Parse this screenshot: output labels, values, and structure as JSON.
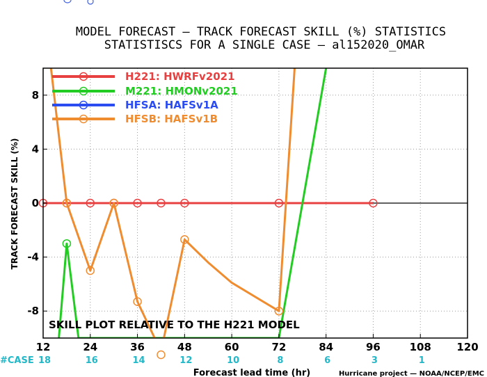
{
  "title_line1": "MODEL FORECAST — TRACK FORECAST SKILL (%) STATISTICS",
  "title_line2": "STATISTISCS FOR A SINGLE CASE — al152020_OMAR",
  "plot_note": "SKILL PLOT RELATIVE TO THE H221 MODEL",
  "case_label": "#CASE",
  "credit": "Hurricane project — NOAA/NCEP/EMC",
  "chart_data": {
    "type": "line",
    "xlabel": "Forecast lead time (hr)",
    "ylabel": "TRACK FORECAST SKILL (%)",
    "xlim": [
      12,
      120
    ],
    "ylim": [
      -10,
      10
    ],
    "xticks": [
      12,
      24,
      36,
      48,
      60,
      72,
      84,
      96,
      108,
      120
    ],
    "yticks": [
      -8,
      -4,
      0,
      4,
      8
    ],
    "grid": true,
    "legend_position": "top-left",
    "case_counts": [
      {
        "x": 12,
        "n": "18"
      },
      {
        "x": 24,
        "n": "16"
      },
      {
        "x": 36,
        "n": "14"
      },
      {
        "x": 48,
        "n": "12"
      },
      {
        "x": 60,
        "n": "10"
      },
      {
        "x": 72,
        "n": "8"
      },
      {
        "x": 84,
        "n": "6"
      },
      {
        "x": 96,
        "n": "3"
      },
      {
        "x": 108,
        "n": "1"
      }
    ],
    "series": [
      {
        "name": "H221: HWRFv2021",
        "color": "#e84040",
        "x": [
          12,
          18,
          24,
          30,
          36,
          42,
          48,
          72,
          96
        ],
        "y": [
          0,
          0,
          0,
          0,
          0,
          0,
          0,
          0,
          0
        ]
      },
      {
        "name": "M221: HMONv2021",
        "color": "#22cc22",
        "x": [
          16,
          18,
          21,
          72,
          78,
          84
        ],
        "y": [
          -10,
          -3,
          -10,
          -10,
          0,
          10
        ]
      },
      {
        "name": "HFSA: HAFSv1A",
        "color": "#2a4cf0",
        "x": [],
        "y": []
      },
      {
        "name": "HFSB: HAFSv1B",
        "color": "#f08c30",
        "x": [
          14,
          18,
          24,
          30,
          36,
          42,
          48,
          54,
          60,
          72,
          76
        ],
        "y": [
          10,
          0,
          -5,
          0,
          -7.3,
          -11,
          -2.7,
          -4.4,
          -5.9,
          -8,
          10
        ]
      }
    ],
    "markers": [
      {
        "series": 0,
        "x": [
          12,
          18,
          24,
          30,
          36,
          42,
          48,
          72,
          96
        ],
        "y": [
          0,
          0,
          0,
          0,
          0,
          0,
          0,
          0,
          0
        ]
      },
      {
        "series": 1,
        "x": [
          18
        ],
        "y": [
          -3
        ]
      },
      {
        "series": 3,
        "x": [
          18,
          24,
          30,
          36,
          48,
          72
        ],
        "y": [
          0,
          -5,
          0,
          -7.3,
          -2.7,
          -8
        ]
      }
    ]
  }
}
